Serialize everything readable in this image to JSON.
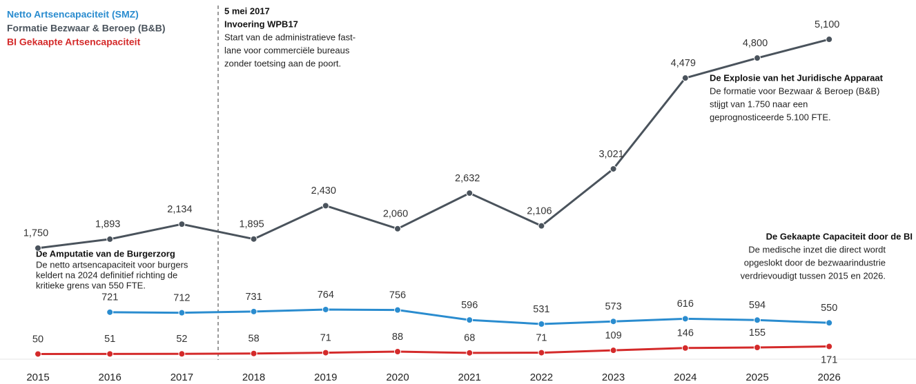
{
  "chart_data": {
    "type": "line",
    "categories": [
      "2015",
      "2016",
      "2017",
      "2018",
      "2019",
      "2020",
      "2021",
      "2022",
      "2023",
      "2024",
      "2025",
      "2026"
    ],
    "ylim": [
      0,
      5200
    ],
    "series": [
      {
        "name": "Netto Artsencapaciteit (SMZ)",
        "color": "#2a8ccf",
        "values": [
          null,
          721,
          712,
          731,
          764,
          756,
          596,
          531,
          573,
          616,
          594,
          550
        ]
      },
      {
        "name": "Formatie Bezwaar & Beroep (B&B)",
        "color": "#4a535c",
        "values": [
          1750,
          1893,
          2134,
          1895,
          2430,
          2060,
          2632,
          2106,
          3021,
          4479,
          4800,
          5100
        ],
        "value_labels": [
          "1,750",
          "1,893",
          "2,134",
          "1,895",
          "2,430",
          "2,060",
          "2,632",
          "2,106",
          "3,021",
          "4,479",
          "4,800",
          "5,100"
        ]
      },
      {
        "name": "BI Gekaapte Artsencapaciteit",
        "color": "#d42a2a",
        "values": [
          50,
          51,
          52,
          58,
          71,
          88,
          68,
          71,
          109,
          146,
          155,
          171
        ]
      }
    ],
    "annotations": [
      {
        "title": "5 mei 2017",
        "subtitle": "Invoering WPB17",
        "text": [
          "Start van de administratieve fast-",
          "lane voor commerciële bureaus",
          "zonder toetsing aan de poort."
        ]
      },
      {
        "title": "De Explosie van het Juridische Apparaat",
        "text": [
          "De formatie voor Bezwaar & Beroep (B&B)",
          "stijgt van 1.750 naar een",
          "geprognosticeerde 5.100 FTE."
        ]
      },
      {
        "title": "De Gekaapte Capaciteit door de BI",
        "text": [
          "De medische inzet die direct wordt",
          "opgeslokt door de bezwaarindustrie",
          "verdrievoudigt tussen 2015 en 2026."
        ]
      },
      {
        "title": "De Amputatie van de Burgerzorg",
        "text": [
          "De netto artsencapaciteit voor burgers",
          "keldert na 2024 definitief richting de",
          "kritieke grens van 550 FTE."
        ]
      }
    ]
  }
}
